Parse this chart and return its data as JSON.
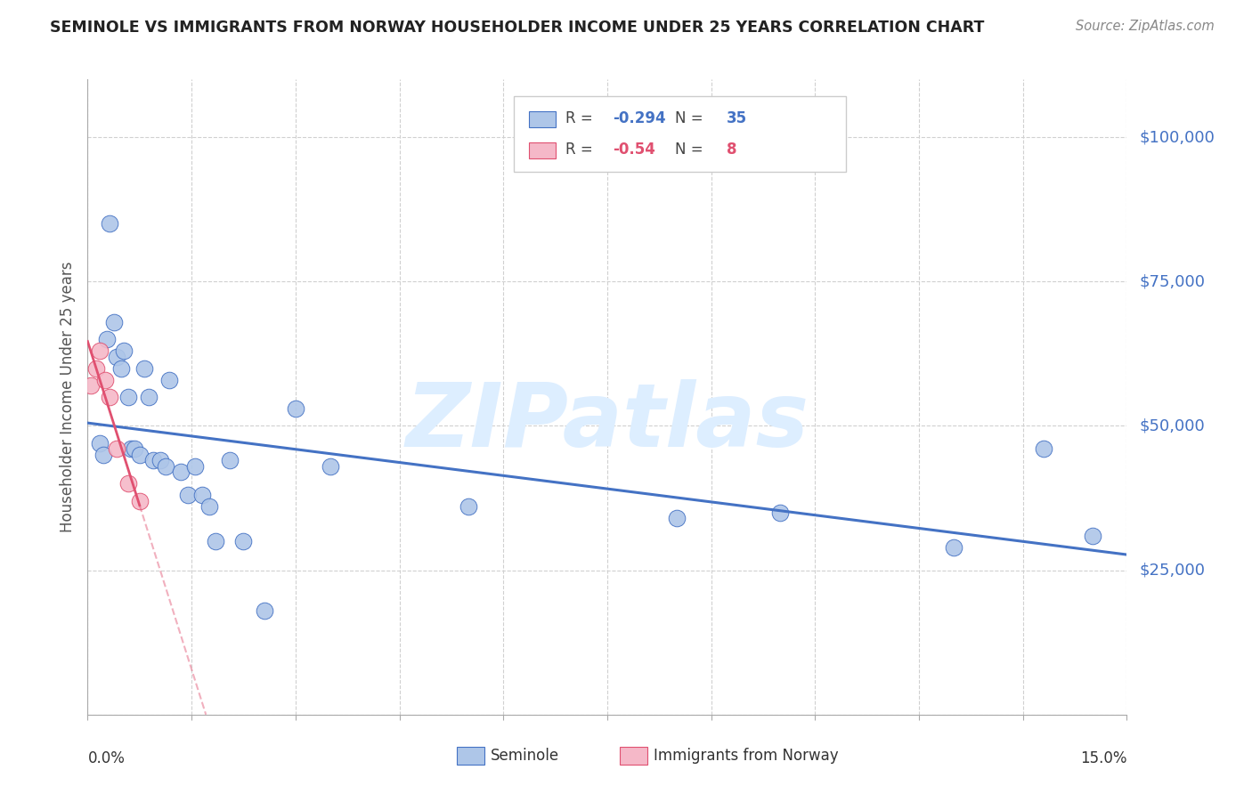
{
  "title": "SEMINOLE VS IMMIGRANTS FROM NORWAY HOUSEHOLDER INCOME UNDER 25 YEARS CORRELATION CHART",
  "source": "Source: ZipAtlas.com",
  "ylabel": "Householder Income Under 25 years",
  "xmin": 0.0,
  "xmax": 15.0,
  "ymin": 0,
  "ymax": 110000,
  "yticks": [
    0,
    25000,
    50000,
    75000,
    100000
  ],
  "ytick_labels": [
    "",
    "$25,000",
    "$50,000",
    "$75,000",
    "$100,000"
  ],
  "r_seminole": -0.294,
  "n_seminole": 35,
  "r_norway": -0.54,
  "n_norway": 8,
  "color_seminole": "#aec6e8",
  "color_norway": "#f5b8c8",
  "line_color_seminole": "#4472c4",
  "line_color_norway": "#e05070",
  "seminole_x": [
    0.18,
    0.22,
    0.28,
    0.32,
    0.38,
    0.42,
    0.48,
    0.52,
    0.58,
    0.62,
    0.68,
    0.75,
    0.82,
    0.88,
    0.95,
    1.05,
    1.12,
    1.18,
    1.35,
    1.45,
    1.55,
    1.65,
    1.75,
    1.85,
    2.05,
    2.25,
    2.55,
    3.0,
    3.5,
    5.5,
    8.5,
    10.0,
    12.5,
    13.8,
    14.5
  ],
  "seminole_y": [
    47000,
    45000,
    65000,
    85000,
    68000,
    62000,
    60000,
    63000,
    55000,
    46000,
    46000,
    45000,
    60000,
    55000,
    44000,
    44000,
    43000,
    58000,
    42000,
    38000,
    43000,
    38000,
    36000,
    30000,
    44000,
    30000,
    18000,
    53000,
    43000,
    36000,
    34000,
    35000,
    29000,
    46000,
    31000
  ],
  "norway_x": [
    0.05,
    0.12,
    0.18,
    0.25,
    0.32,
    0.42,
    0.58,
    0.75
  ],
  "norway_y": [
    57000,
    60000,
    63000,
    58000,
    55000,
    46000,
    40000,
    37000
  ],
  "background_color": "#ffffff",
  "grid_color": "#d0d0d0",
  "xtick_positions": [
    0.0,
    1.5,
    3.0,
    4.5,
    6.0,
    7.5,
    9.0,
    10.5,
    12.0,
    13.5,
    15.0
  ],
  "watermark_text": "ZIPatlas",
  "watermark_color": "#ddeeff"
}
